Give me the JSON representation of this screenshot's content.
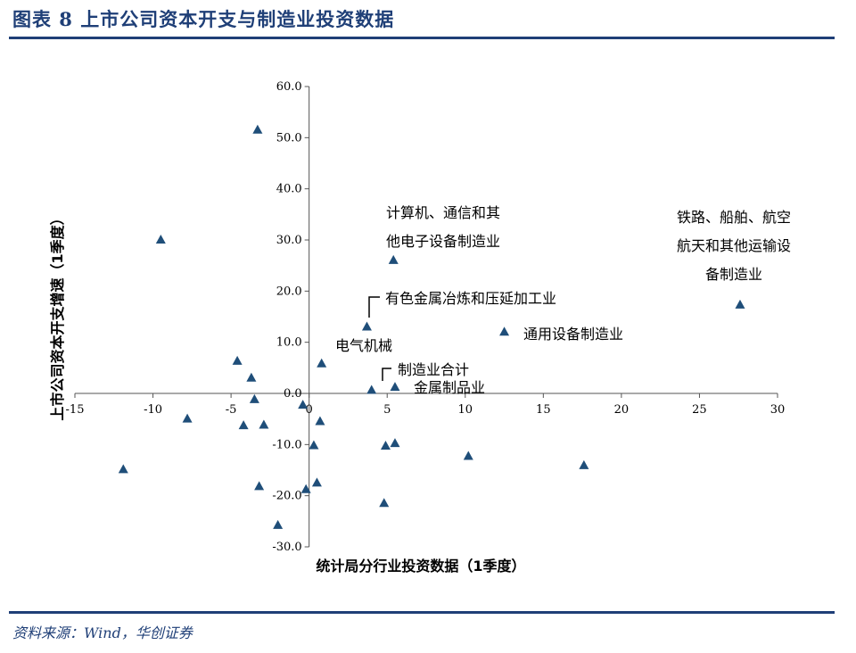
{
  "header": {
    "title": "图表 8    上市公司资本开支与制造业投资数据"
  },
  "footer": {
    "source": "资料来源：Wind，华创证券"
  },
  "chart_data": {
    "type": "scatter",
    "title": "",
    "xlabel": "统计局分行业投资数据（1季度）",
    "ylabel": "上市公司资本开支增速（1季度）",
    "xlim": [
      -15,
      30
    ],
    "ylim": [
      -30,
      60
    ],
    "xticks": [
      -15,
      -10,
      -5,
      0,
      5,
      10,
      15,
      20,
      25,
      30
    ],
    "yticks": [
      60,
      50,
      40,
      30,
      20,
      10,
      0,
      -10,
      -20,
      -30
    ],
    "ytick_labels": [
      "60.0",
      "50.0",
      "40.0",
      "30.0",
      "20.0",
      "10.0",
      "0.0",
      "-10.0",
      "-20.0",
      "-30.0"
    ],
    "grid": false,
    "marker": "triangle",
    "color": "#1f4e79",
    "points": [
      {
        "x": -3.3,
        "y": 51.5
      },
      {
        "x": -9.5,
        "y": 30.0
      },
      {
        "x": 5.4,
        "y": 26.0
      },
      {
        "x": 27.6,
        "y": 17.3
      },
      {
        "x": 3.7,
        "y": 13.0
      },
      {
        "x": 12.5,
        "y": 12.0
      },
      {
        "x": -4.6,
        "y": 6.3
      },
      {
        "x": 0.8,
        "y": 5.8
      },
      {
        "x": -3.7,
        "y": 3.0
      },
      {
        "x": 5.5,
        "y": 1.2
      },
      {
        "x": 4.0,
        "y": 0.6
      },
      {
        "x": -3.5,
        "y": -1.2
      },
      {
        "x": -0.4,
        "y": -2.3
      },
      {
        "x": -7.8,
        "y": -5.0
      },
      {
        "x": 0.7,
        "y": -5.5
      },
      {
        "x": -4.2,
        "y": -6.3
      },
      {
        "x": -2.9,
        "y": -6.2
      },
      {
        "x": 5.5,
        "y": -9.8
      },
      {
        "x": 4.9,
        "y": -10.3
      },
      {
        "x": 0.3,
        "y": -10.2
      },
      {
        "x": 10.2,
        "y": -12.3
      },
      {
        "x": 17.6,
        "y": -14.1
      },
      {
        "x": -11.9,
        "y": -14.9
      },
      {
        "x": 0.5,
        "y": -17.5
      },
      {
        "x": -3.2,
        "y": -18.2
      },
      {
        "x": -0.2,
        "y": -18.8
      },
      {
        "x": 4.8,
        "y": -21.5
      },
      {
        "x": -2.0,
        "y": -25.8
      }
    ],
    "annotations": [
      {
        "lines": [
          "计算机、通信和其",
          "他电子设备制造业"
        ]
      },
      {
        "lines": [
          "铁路、船舶、航空",
          "航天和其他运输设",
          "备制造业"
        ]
      },
      {
        "lines": [
          "有色金属冶炼和压延加工业"
        ]
      },
      {
        "lines": [
          "通用设备制造业"
        ]
      },
      {
        "lines": [
          "电气机械"
        ]
      },
      {
        "lines": [
          "制造业合计"
        ]
      },
      {
        "lines": [
          "金属制品业"
        ]
      }
    ]
  }
}
